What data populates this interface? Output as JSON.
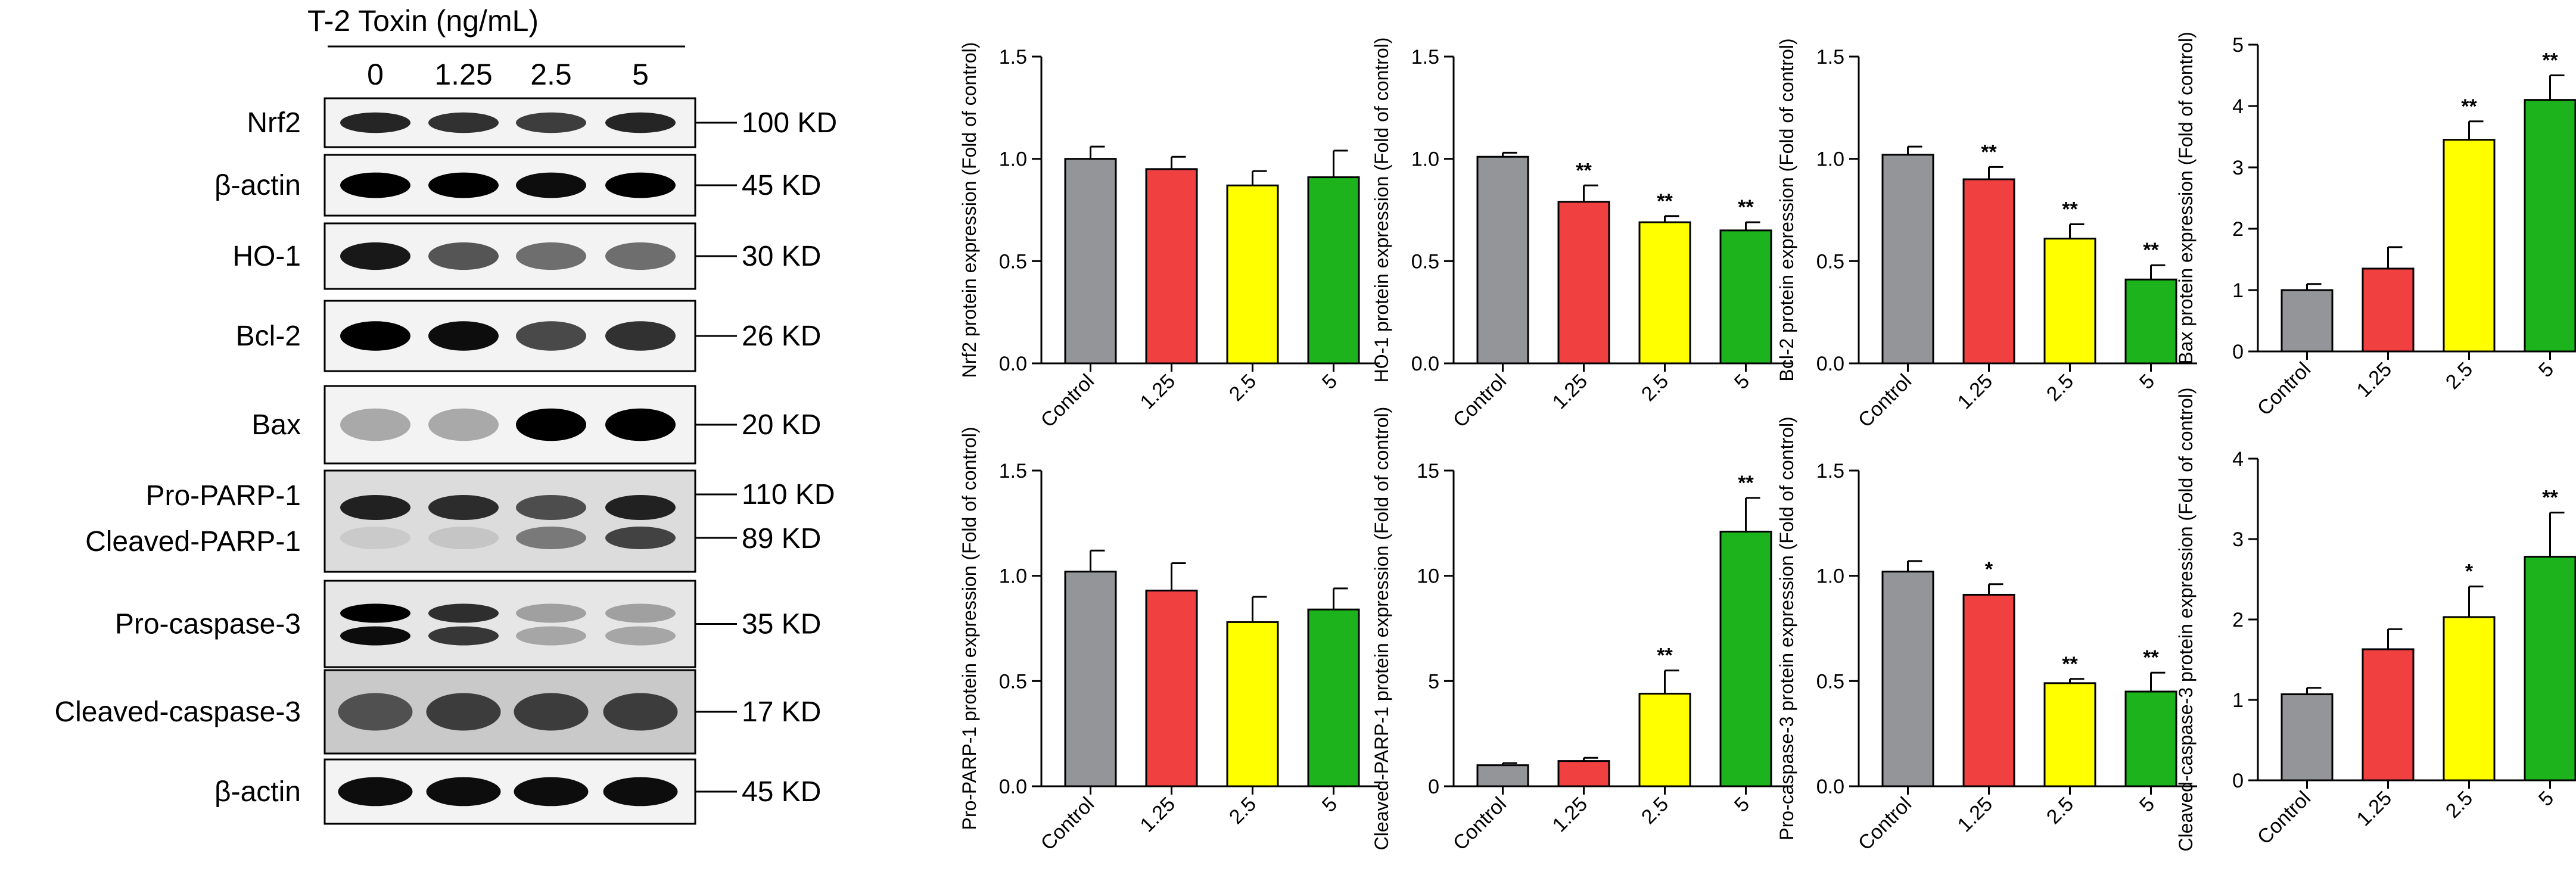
{
  "western_blot": {
    "header": "T-2 Toxin (ng/mL)",
    "lanes": [
      "0",
      "1.25",
      "2.5",
      "5"
    ],
    "rows": [
      {
        "protein": "Nrf2",
        "size": "100 KD",
        "intensity": [
          0.85,
          0.8,
          0.75,
          0.85
        ]
      },
      {
        "protein": "β-actin",
        "size": "45 KD",
        "intensity": [
          1.0,
          1.0,
          0.95,
          1.0
        ]
      },
      {
        "protein": "HO-1",
        "size": "30 KD",
        "intensity": [
          0.9,
          0.65,
          0.55,
          0.55
        ]
      },
      {
        "protein": "Bcl-2",
        "size": "26 KD",
        "intensity": [
          1.0,
          0.95,
          0.7,
          0.8
        ]
      },
      {
        "protein": "Bax",
        "size": "20 KD",
        "intensity": [
          0.3,
          0.3,
          1.0,
          1.0
        ]
      },
      {
        "protein": "Pro-PARP-1",
        "size": "110 KD",
        "intensity": [
          0.85,
          0.8,
          0.65,
          0.85
        ]
      },
      {
        "protein": "Cleaved-PARP-1",
        "size": "89 KD",
        "intensity": [
          0.05,
          0.1,
          0.45,
          0.7
        ]
      },
      {
        "protein": "Pro-caspase-3",
        "size": "35 KD",
        "intensity": [
          1.0,
          0.8,
          0.3,
          0.3
        ]
      },
      {
        "protein": "Cleaved-caspase-3",
        "size": "17 KD",
        "intensity": [
          0.6,
          0.7,
          0.7,
          0.7
        ]
      },
      {
        "protein": "β-actin",
        "size": "45 KD",
        "intensity": [
          0.95,
          0.95,
          0.95,
          0.95
        ]
      }
    ]
  },
  "colors": {
    "control": "#939598",
    "c1_25": "#f04040",
    "c2_5": "#ffff00",
    "c5": "#1db31d"
  },
  "chart_data": [
    {
      "type": "bar",
      "categories": [
        "Control",
        "1.25",
        "2.5",
        "5"
      ],
      "ylabel": "Nrf2 protein expression (Fold of control)",
      "ylim": [
        0,
        1.5
      ],
      "yticks": [
        "0.0",
        "0.5",
        "1.0",
        "1.5"
      ],
      "values": [
        1.0,
        0.95,
        0.87,
        0.91
      ],
      "errors": [
        0.06,
        0.06,
        0.07,
        0.13
      ],
      "significance": [
        "",
        "",
        "",
        ""
      ]
    },
    {
      "type": "bar",
      "categories": [
        "Control",
        "1.25",
        "2.5",
        "5"
      ],
      "ylabel": "HO-1 protein expression (Fold of control)",
      "ylim": [
        0,
        1.5
      ],
      "yticks": [
        "0.0",
        "0.5",
        "1.0",
        "1.5"
      ],
      "values": [
        1.01,
        0.79,
        0.69,
        0.65
      ],
      "errors": [
        0.02,
        0.08,
        0.03,
        0.04
      ],
      "significance": [
        "",
        "**",
        "**",
        "**"
      ]
    },
    {
      "type": "bar",
      "categories": [
        "Control",
        "1.25",
        "2.5",
        "5"
      ],
      "ylabel": "Bcl-2 protein expression (Fold of control)",
      "ylim": [
        0,
        1.5
      ],
      "yticks": [
        "0.0",
        "0.5",
        "1.0",
        "1.5"
      ],
      "values": [
        1.02,
        0.9,
        0.61,
        0.41
      ],
      "errors": [
        0.04,
        0.06,
        0.07,
        0.07
      ],
      "significance": [
        "",
        "**",
        "**",
        "**"
      ]
    },
    {
      "type": "bar",
      "categories": [
        "Control",
        "1.25",
        "2.5",
        "5"
      ],
      "ylabel": "Bax protein expression (Fold of control)",
      "ylim": [
        0,
        5
      ],
      "yticks": [
        "0",
        "1",
        "2",
        "3",
        "4",
        "5"
      ],
      "values": [
        1.0,
        1.35,
        3.45,
        4.1
      ],
      "errors": [
        0.1,
        0.35,
        0.3,
        0.4
      ],
      "significance": [
        "",
        "",
        "**",
        "**"
      ]
    },
    {
      "type": "bar",
      "categories": [
        "Control",
        "1.25",
        "2.5",
        "5"
      ],
      "ylabel": "Pro-PARP-1 protein expression (Fold of control)",
      "ylim": [
        0,
        1.5
      ],
      "yticks": [
        "0.0",
        "0.5",
        "1.0",
        "1.5"
      ],
      "values": [
        1.02,
        0.93,
        0.78,
        0.84
      ],
      "errors": [
        0.1,
        0.13,
        0.12,
        0.1
      ],
      "significance": [
        "",
        "",
        "",
        ""
      ]
    },
    {
      "type": "bar",
      "categories": [
        "Control",
        "1.25",
        "2.5",
        "5"
      ],
      "ylabel": "Cleaved-PARP-1 protein expression (Fold of control)",
      "ylim": [
        0,
        15
      ],
      "yticks": [
        "0",
        "5",
        "10",
        "15"
      ],
      "values": [
        1.0,
        1.2,
        4.4,
        12.1
      ],
      "errors": [
        0.1,
        0.15,
        1.1,
        1.6
      ],
      "significance": [
        "",
        "",
        "**",
        "**"
      ]
    },
    {
      "type": "bar",
      "categories": [
        "Control",
        "1.25",
        "2.5",
        "5"
      ],
      "ylabel": "Pro-caspase-3 protein expression (Fold of control)",
      "ylim": [
        0,
        1.5
      ],
      "yticks": [
        "0.0",
        "0.5",
        "1.0",
        "1.5"
      ],
      "values": [
        1.02,
        0.91,
        0.49,
        0.45
      ],
      "errors": [
        0.05,
        0.05,
        0.02,
        0.09
      ],
      "significance": [
        "",
        "*",
        "**",
        "**"
      ]
    },
    {
      "type": "bar",
      "categories": [
        "Control",
        "1.25",
        "2.5",
        "5"
      ],
      "ylabel": "Cleaved-caspase-3 protein expression (Fold of control)",
      "ylim": [
        0,
        4
      ],
      "yticks": [
        "0",
        "1",
        "2",
        "3",
        "4"
      ],
      "values": [
        1.07,
        1.63,
        2.03,
        2.78
      ],
      "errors": [
        0.08,
        0.25,
        0.38,
        0.55
      ],
      "significance": [
        "",
        "",
        "*",
        "**"
      ]
    }
  ]
}
